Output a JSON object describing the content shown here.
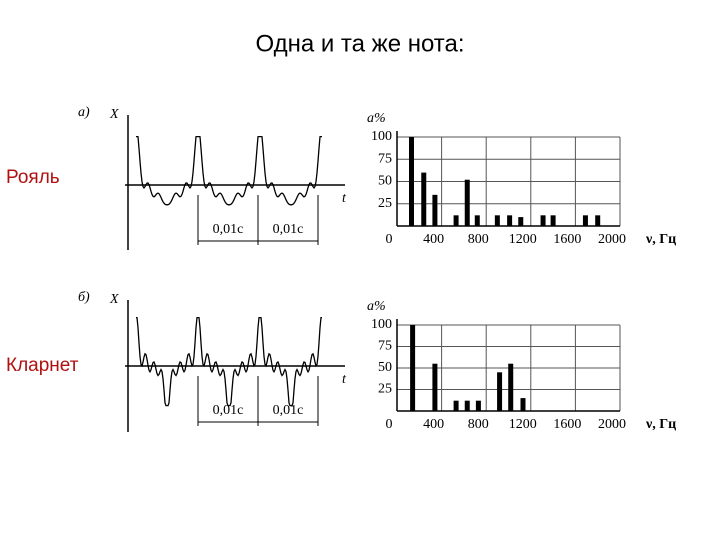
{
  "title": "Одна и та же нота:",
  "rows": [
    {
      "label": "Рояль",
      "waveform": {
        "panel": "а)",
        "y_label": "X",
        "x_label": "t",
        "period_labels": [
          "0,01c",
          "0,01c"
        ]
      }
    },
    {
      "label": "Кларнет",
      "waveform": {
        "panel": "б)",
        "y_label": "X",
        "x_label": "t",
        "period_labels": [
          "0,01c",
          "0,01c"
        ]
      }
    }
  ],
  "chart_data": [
    {
      "type": "bar",
      "y_label": "a%",
      "x_label": "ν, Гц",
      "x": [
        130,
        240,
        340,
        530,
        630,
        720,
        900,
        1010,
        1110,
        1310,
        1400,
        1690,
        1800
      ],
      "values": [
        100,
        60,
        35,
        12,
        52,
        12,
        12,
        12,
        10,
        12,
        12,
        12,
        12
      ],
      "xlim": [
        0,
        2000
      ],
      "ylim": [
        0,
        100
      ],
      "xticks": [
        0,
        400,
        800,
        1200,
        1600,
        2000
      ],
      "yticks": [
        25,
        50,
        75,
        100
      ],
      "grid": true,
      "color": "#000000"
    },
    {
      "type": "bar",
      "y_label": "a%",
      "x_label": "ν, Гц",
      "x": [
        140,
        340,
        530,
        630,
        730,
        920,
        1020,
        1130
      ],
      "values": [
        100,
        55,
        12,
        12,
        12,
        45,
        55,
        15
      ],
      "xlim": [
        0,
        2000
      ],
      "ylim": [
        0,
        100
      ],
      "xticks": [
        0,
        400,
        800,
        1200,
        1600,
        2000
      ],
      "yticks": [
        25,
        50,
        75,
        100
      ],
      "grid": true,
      "color": "#000000"
    }
  ]
}
